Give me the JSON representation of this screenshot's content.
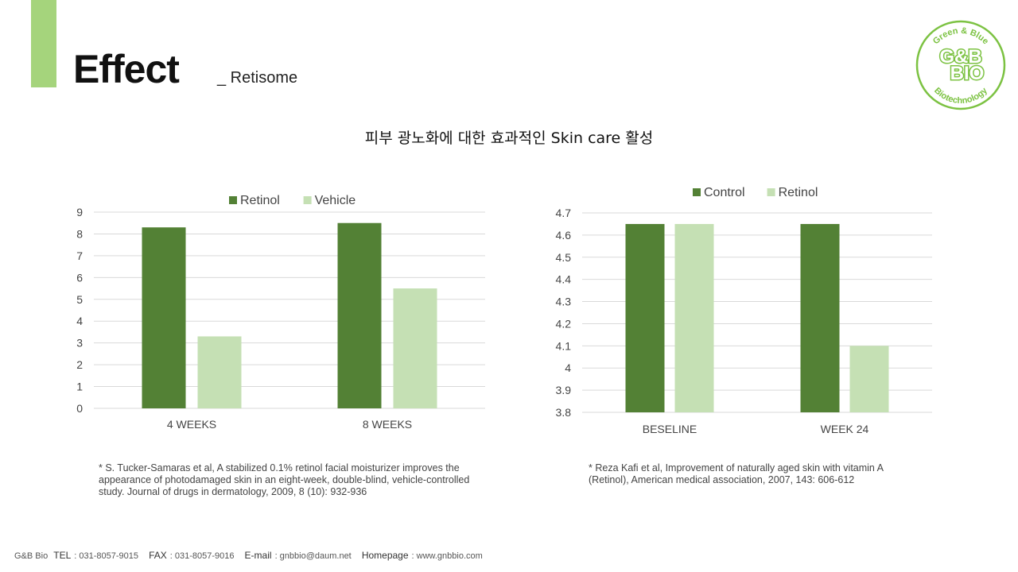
{
  "header": {
    "title": "Effect",
    "subtitle": "_ Retisome",
    "accent_color": "#a5d47c"
  },
  "logo": {
    "top_text": "Green & Blue",
    "main_line1": "G&B",
    "main_line2": "BIO",
    "bottom_text": "Biotechnology",
    "color": "#7cc242"
  },
  "heading": "피부 광노화에 대한 효과적인 Skin care 활성",
  "chart_data": [
    {
      "type": "bar",
      "categories": [
        "4 WEEKS",
        "8 WEEKS"
      ],
      "series": [
        {
          "name": "Retinol",
          "values": [
            8.3,
            8.5
          ],
          "color": "#538135"
        },
        {
          "name": "Vehicle",
          "values": [
            3.3,
            5.5
          ],
          "color": "#c5e0b4"
        }
      ],
      "ylim": [
        0,
        9
      ],
      "yticks": [
        0,
        1,
        2,
        3,
        4,
        5,
        6,
        7,
        8,
        9
      ],
      "legend": "top",
      "grid": true
    },
    {
      "type": "bar",
      "categories": [
        "BESELINE",
        "WEEK 24"
      ],
      "series": [
        {
          "name": "Control",
          "values": [
            4.65,
            4.65
          ],
          "color": "#538135"
        },
        {
          "name": "Retinol",
          "values": [
            4.65,
            4.1
          ],
          "color": "#c5e0b4"
        }
      ],
      "ylim": [
        3.8,
        4.7
      ],
      "yticks": [
        3.8,
        3.9,
        4,
        4.1,
        4.2,
        4.3,
        4.4,
        4.5,
        4.6,
        4.7
      ],
      "legend": "top",
      "grid": true
    }
  ],
  "references": {
    "left": "* S. Tucker-Samaras et al, A stabilized 0.1% retinol facial moisturizer improves the appearance of photodamaged skin in an eight-week, double-blind, vehicle-controlled study. Journal of drugs in dermatology, 2009, 8 (10): 932-936",
    "right": "* Reza Kafi et al, Improvement of naturally aged skin with vitamin A (Retinol), American medical association, 2007, 143: 606-612"
  },
  "footer": {
    "company": "G&B Bio",
    "tel_label": "TEL",
    "tel_value": ": 031-8057-9015",
    "fax_label": "FAX",
    "fax_value": ": 031-8057-9016",
    "email_label": "E-mail",
    "email_value": ": gnbbio@daum.net",
    "homepage_label": "Homepage",
    "homepage_value": ": www.gnbbio.com"
  }
}
